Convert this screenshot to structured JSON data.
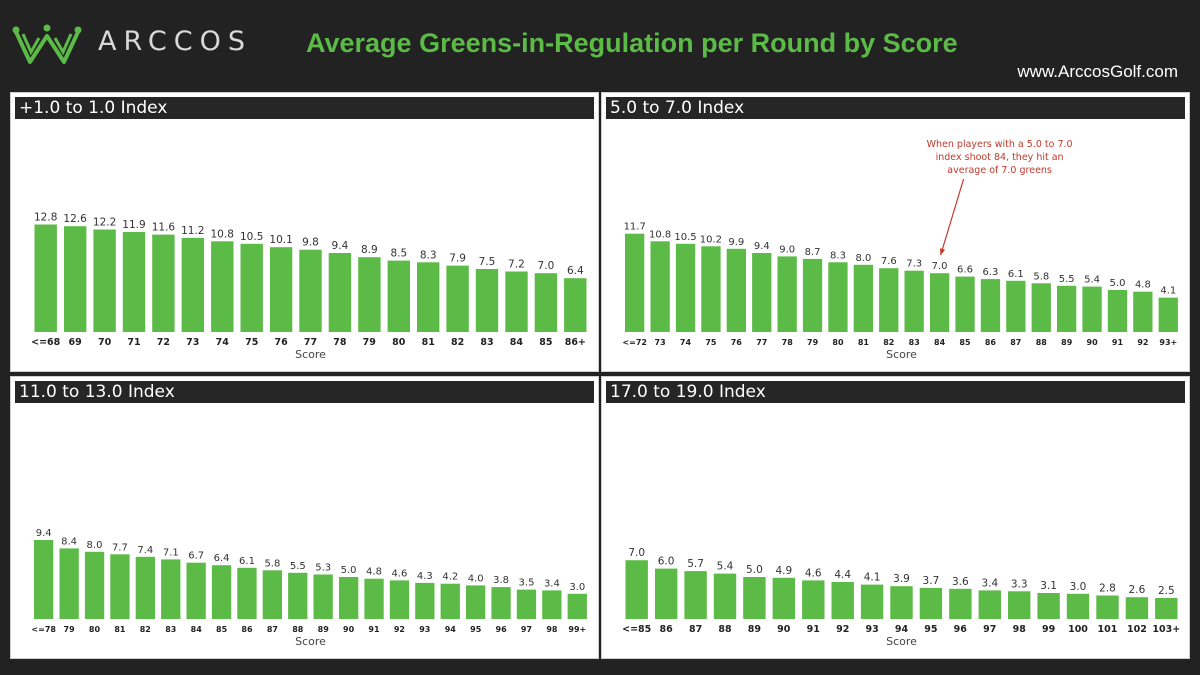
{
  "header": {
    "brand": "ARCCOS",
    "title": "Average Greens-in-Regulation per Round by Score",
    "website": "www.ArccosGolf.com"
  },
  "colors": {
    "bar": "#5cba47",
    "title": "#5cba47",
    "annotation": "#c0392b",
    "background": "#222222"
  },
  "chart_data": [
    {
      "type": "bar",
      "title": "+1.0 to 1.0 Index",
      "xlabel": "Score",
      "ylabel": "",
      "ylim": [
        0,
        15
      ],
      "categories": [
        "<=68",
        "69",
        "70",
        "71",
        "72",
        "73",
        "74",
        "75",
        "76",
        "77",
        "78",
        "79",
        "80",
        "81",
        "82",
        "83",
        "84",
        "85",
        "86+"
      ],
      "values": [
        12.8,
        12.6,
        12.2,
        11.9,
        11.6,
        11.2,
        10.8,
        10.5,
        10.1,
        9.8,
        9.4,
        8.9,
        8.5,
        8.3,
        7.9,
        7.5,
        7.2,
        7.0,
        6.4
      ]
    },
    {
      "type": "bar",
      "title": "5.0 to 7.0 Index",
      "xlabel": "Score",
      "ylabel": "",
      "ylim": [
        0,
        15
      ],
      "categories": [
        "<=72",
        "73",
        "74",
        "75",
        "76",
        "77",
        "78",
        "79",
        "80",
        "81",
        "82",
        "83",
        "84",
        "85",
        "86",
        "87",
        "88",
        "89",
        "90",
        "91",
        "92",
        "93+"
      ],
      "values": [
        11.7,
        10.8,
        10.5,
        10.2,
        9.9,
        9.4,
        9.0,
        8.7,
        8.3,
        8.0,
        7.6,
        7.3,
        7.0,
        6.6,
        6.3,
        6.1,
        5.8,
        5.5,
        5.4,
        5.0,
        4.8,
        4.1
      ],
      "annotation": {
        "lines": [
          "When players with a 5.0 to 7.0",
          "index shoot 84, they hit an",
          "average of 7.0 greens"
        ],
        "target_category": "84"
      }
    },
    {
      "type": "bar",
      "title": "11.0 to 13.0 Index",
      "xlabel": "Score",
      "ylabel": "",
      "ylim": [
        0,
        15
      ],
      "categories": [
        "<=78",
        "79",
        "80",
        "81",
        "82",
        "83",
        "84",
        "85",
        "86",
        "87",
        "88",
        "89",
        "90",
        "91",
        "92",
        "93",
        "94",
        "95",
        "96",
        "97",
        "98",
        "99+"
      ],
      "values": [
        9.4,
        8.4,
        8.0,
        7.7,
        7.4,
        7.1,
        6.7,
        6.4,
        6.1,
        5.8,
        5.5,
        5.3,
        5.0,
        4.8,
        4.6,
        4.3,
        4.2,
        4.0,
        3.8,
        3.5,
        3.4,
        3.0
      ]
    },
    {
      "type": "bar",
      "title": "17.0 to 19.0 Index",
      "xlabel": "Score",
      "ylabel": "",
      "ylim": [
        0,
        15
      ],
      "categories": [
        "<=85",
        "86",
        "87",
        "88",
        "89",
        "90",
        "91",
        "92",
        "93",
        "94",
        "95",
        "96",
        "97",
        "98",
        "99",
        "100",
        "101",
        "102",
        "103+"
      ],
      "values": [
        7.0,
        6.0,
        5.7,
        5.4,
        5.0,
        4.9,
        4.6,
        4.4,
        4.1,
        3.9,
        3.7,
        3.6,
        3.4,
        3.3,
        3.1,
        3.0,
        2.8,
        2.6,
        2.5
      ]
    }
  ]
}
